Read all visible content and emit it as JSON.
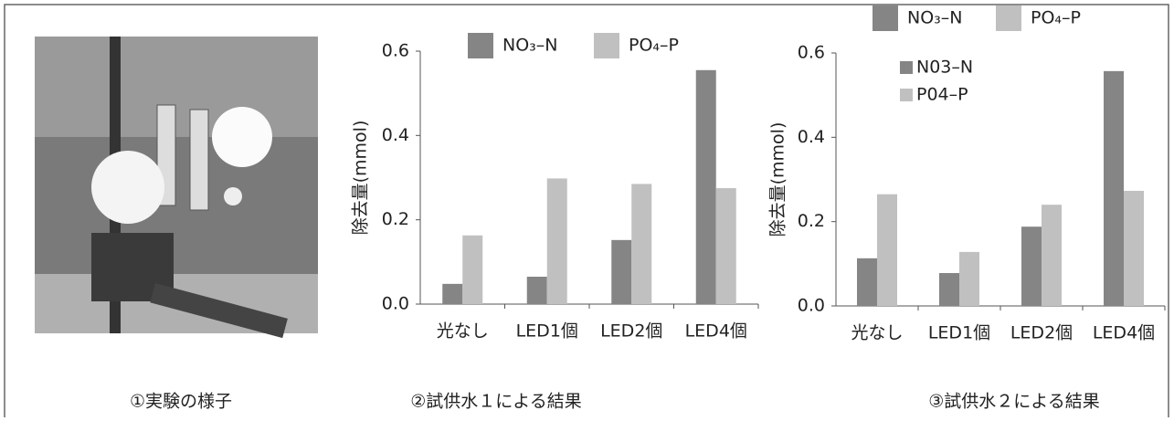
{
  "photo": {
    "caption": "①実験の様子"
  },
  "chart_data": [
    {
      "type": "bar",
      "caption": "②試供水１による結果",
      "y_label": "除去量(mmol)",
      "categories": [
        "光なし",
        "LED1個",
        "LED2個",
        "LED4個"
      ],
      "series": [
        {
          "name": "NO₃–N",
          "color": "#858585",
          "values": [
            0.048,
            0.065,
            0.152,
            0.555
          ]
        },
        {
          "name": "PO₄–P",
          "color": "#c0c0c0",
          "values": [
            0.163,
            0.298,
            0.285,
            0.275
          ]
        }
      ],
      "ylim": [
        0,
        0.6
      ],
      "yticks": [
        {
          "value": 0,
          "label": "0.0"
        },
        0.2,
        0.4,
        0.6
      ]
    },
    {
      "type": "bar",
      "caption": "③試供水２による結果",
      "y_label": "除去量(mmol)",
      "categories": [
        "光なし",
        "LED1個",
        "LED2個",
        "LED4個"
      ],
      "series": [
        {
          "name": "NO₃–N",
          "color": "#858585",
          "values": [
            0.113,
            0.078,
            0.188,
            0.557
          ]
        },
        {
          "name": "PO₄–P",
          "color": "#c0c0c0",
          "values": [
            0.265,
            0.128,
            0.24,
            0.273
          ]
        }
      ],
      "legend_extra": [
        "N03–N",
        "P04–P"
      ],
      "ylim": [
        0,
        0.6
      ],
      "yticks": [
        {
          "value": 0,
          "label": "0.0"
        },
        0.2,
        0.4,
        0.6
      ]
    }
  ]
}
